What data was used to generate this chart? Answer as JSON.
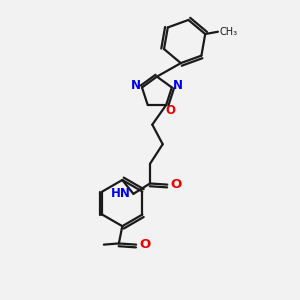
{
  "bg_color": "#f2f2f2",
  "bond_color": "#1a1a1a",
  "N_color": "#0000ee",
  "O_color": "#ee0000",
  "NH_color": "#0000ee",
  "lw": 1.6,
  "fs": 8.5,
  "xlim": [
    0,
    10
  ],
  "ylim": [
    0,
    13
  ],
  "figsize": [
    3.0,
    3.0
  ],
  "dpi": 100
}
